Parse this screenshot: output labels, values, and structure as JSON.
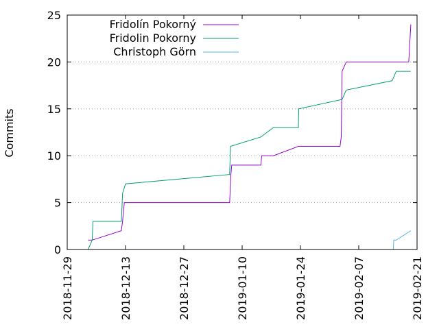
{
  "chart_data": {
    "type": "line",
    "title": "",
    "xlabel": "",
    "ylabel": "Commits",
    "x_type": "date",
    "xlim": [
      "2018-11-29",
      "2019-02-21"
    ],
    "ylim": [
      0,
      25
    ],
    "x_ticks": [
      "2018-11-29",
      "2018-12-13",
      "2018-12-27",
      "2019-01-10",
      "2019-01-24",
      "2019-02-07",
      "2019-02-21"
    ],
    "y_ticks": [
      0,
      5,
      10,
      15,
      20,
      25
    ],
    "grid": "horizontal dotted lines at y ticks",
    "legend_position": "top-left",
    "series": [
      {
        "name": "Fridolín Pokorný",
        "color": "#9400d3",
        "step": "post",
        "points": [
          [
            "2018-12-04",
            1
          ],
          [
            "2018-12-05",
            1
          ],
          [
            "2018-12-12",
            2
          ],
          [
            "2018-12-12.3",
            3
          ],
          [
            "2018-12-12.5",
            4
          ],
          [
            "2018-12-12.7",
            5
          ],
          [
            "2019-01-07",
            5
          ],
          [
            "2019-01-07.3",
            8
          ],
          [
            "2019-01-07.5",
            9
          ],
          [
            "2019-01-14.5",
            9
          ],
          [
            "2019-01-14.7",
            10
          ],
          [
            "2019-01-17.5",
            10
          ],
          [
            "2019-01-23.5",
            11
          ],
          [
            "2019-02-02.5",
            11
          ],
          [
            "2019-02-02.8",
            12
          ],
          [
            "2019-02-03",
            19
          ],
          [
            "2019-02-04",
            20
          ],
          [
            "2019-02-19",
            20
          ],
          [
            "2019-02-19.5",
            24
          ]
        ]
      },
      {
        "name": "Fridolin Pokorny",
        "color": "#009e73",
        "step": "post",
        "points": [
          [
            "2018-12-04",
            0
          ],
          [
            "2018-12-05",
            1
          ],
          [
            "2018-12-05.2",
            3
          ],
          [
            "2018-12-12",
            3
          ],
          [
            "2018-12-12.1",
            4
          ],
          [
            "2018-12-12.3",
            6
          ],
          [
            "2018-12-13",
            7
          ],
          [
            "2019-01-07",
            8
          ],
          [
            "2019-01-07.2",
            11
          ],
          [
            "2019-01-14.5",
            12
          ],
          [
            "2019-01-17.5",
            13
          ],
          [
            "2019-01-23.5",
            13
          ],
          [
            "2019-01-23.6",
            15
          ],
          [
            "2019-02-03",
            16
          ],
          [
            "2019-02-04",
            17
          ],
          [
            "2019-02-15",
            18
          ],
          [
            "2019-02-16",
            19
          ],
          [
            "2019-02-19.5",
            19
          ]
        ]
      },
      {
        "name": "Christoph Görn",
        "color": "#56b4e9",
        "step": "post",
        "points": [
          [
            "2019-02-15.3",
            0
          ],
          [
            "2019-02-15.4",
            1
          ],
          [
            "2019-02-16",
            1
          ],
          [
            "2019-02-19.5",
            2
          ]
        ]
      }
    ]
  }
}
